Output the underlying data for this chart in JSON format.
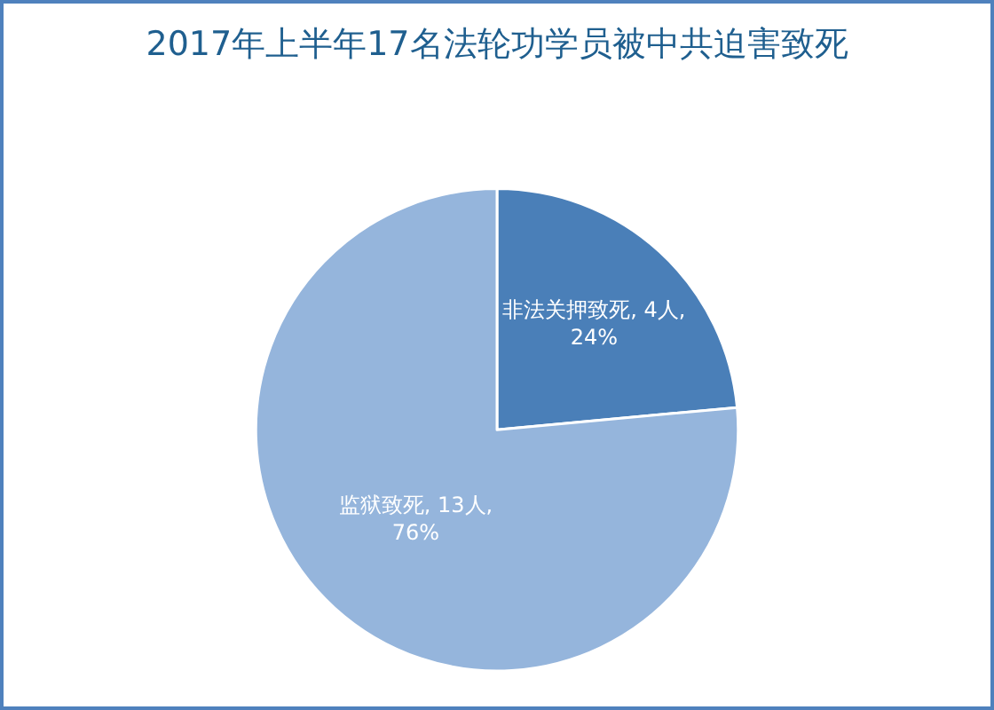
{
  "chart_data": {
    "type": "pie",
    "title": "2017年上半年17名法轮功学员被中共迫害致死",
    "categories": [
      "非法关押致死",
      "监狱致死"
    ],
    "values": [
      4,
      13
    ],
    "value_labels": [
      "4人, 24%",
      "13人, 76%"
    ],
    "colors": [
      "#4a7fb8",
      "#95b5dc"
    ],
    "legend": false
  }
}
